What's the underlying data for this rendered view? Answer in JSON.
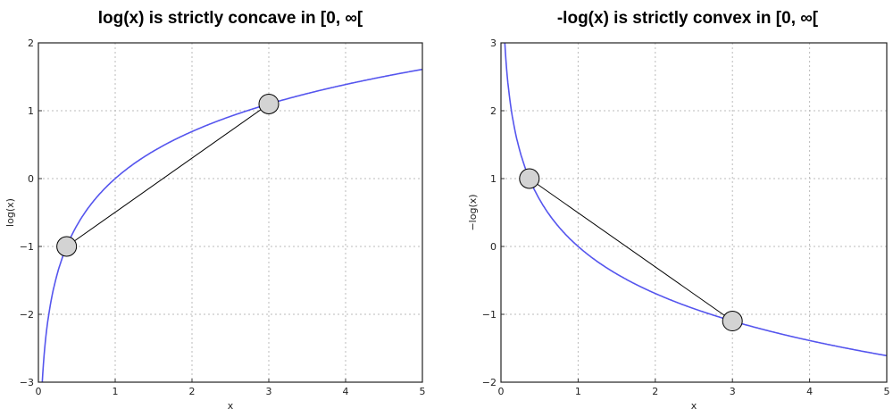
{
  "chart_data": [
    {
      "type": "line",
      "title": "log(x) is strictly concave in [0, ∞[",
      "xlabel": "x",
      "ylabel": "log(x)",
      "xlim": [
        0,
        5
      ],
      "ylim": [
        -3,
        2
      ],
      "xticks": [
        "0",
        "1",
        "2",
        "3",
        "4",
        "5"
      ],
      "yticks": [
        "−3",
        "−2",
        "−1",
        "0",
        "1",
        "2"
      ],
      "grid": true,
      "func": "log",
      "series_color": "#5555ee",
      "points": [
        {
          "x": 0.368,
          "y": -1
        },
        {
          "x": 3.0,
          "y": 1.099
        }
      ]
    },
    {
      "type": "line",
      "title": "-log(x) is strictly convex in [0, ∞[",
      "xlabel": "x",
      "ylabel": "−log(x)",
      "xlim": [
        0,
        5
      ],
      "ylim": [
        -2,
        3
      ],
      "xticks": [
        "0",
        "1",
        "2",
        "3",
        "4",
        "5"
      ],
      "yticks": [
        "−2",
        "−1",
        "0",
        "1",
        "2",
        "3"
      ],
      "grid": true,
      "func": "neglog",
      "series_color": "#5555ee",
      "points": [
        {
          "x": 0.368,
          "y": 1
        },
        {
          "x": 3.0,
          "y": -1.099
        }
      ]
    }
  ]
}
